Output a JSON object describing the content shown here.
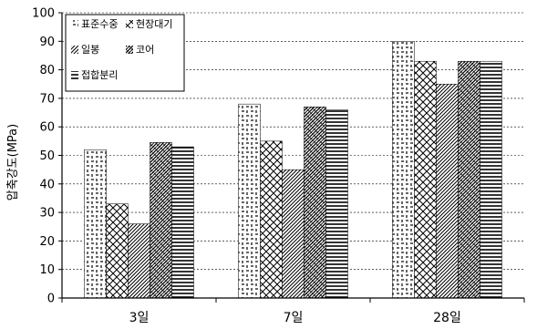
{
  "chart_data": {
    "type": "bar",
    "title": "",
    "xlabel": "",
    "ylabel": "압축강도(MPa)",
    "ylim": [
      0,
      100
    ],
    "yticks": [
      0,
      10,
      20,
      30,
      40,
      50,
      60,
      70,
      80,
      90,
      100
    ],
    "grid": true,
    "legend_position": "top-left",
    "categories": [
      "3일",
      "7일",
      "28일"
    ],
    "series": [
      {
        "name": "표준수중",
        "pattern": "cross-dash",
        "values": [
          52,
          68,
          90
        ]
      },
      {
        "name": "현장대기",
        "pattern": "diagonal-cross",
        "values": [
          33,
          55,
          83
        ]
      },
      {
        "name": "일봉",
        "pattern": "diagonal-dense",
        "values": [
          26,
          45,
          75
        ]
      },
      {
        "name": "코어",
        "pattern": "diagonal-hatch",
        "values": [
          54.5,
          67,
          83
        ]
      },
      {
        "name": "접합분리",
        "pattern": "horizontal",
        "values": [
          53,
          66,
          83
        ]
      }
    ],
    "colors": {
      "ink": "#000000",
      "background": "#ffffff"
    }
  }
}
